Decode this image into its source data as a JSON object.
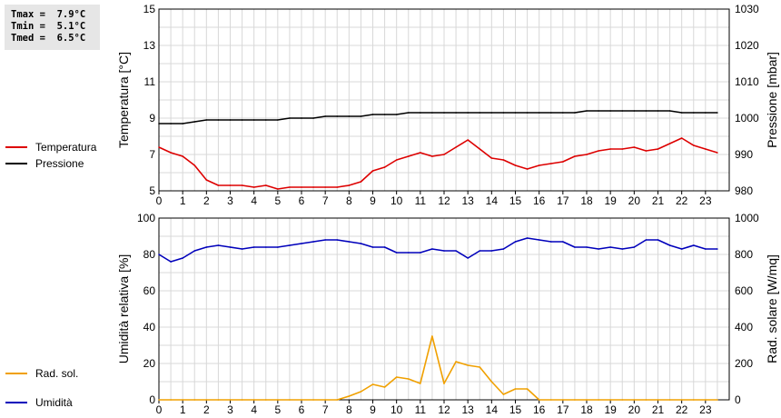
{
  "stats": {
    "lines": [
      "Tmax =  7.9°C",
      "Tmin =  5.1°C",
      "Tmed =  6.5°C"
    ]
  },
  "legend_top": [
    {
      "label": "Temperatura",
      "color": "#dd0000"
    },
    {
      "label": "Pressione",
      "color": "#000000"
    }
  ],
  "legend_bottom": [
    {
      "label": "Umidità",
      "color": "#0000bb"
    },
    {
      "label": "Rad. sol.",
      "color": "#f0a000"
    }
  ],
  "chart_data": [
    {
      "type": "line",
      "title": "",
      "xlabel": "",
      "x_ticks": [
        "0",
        "1",
        "2",
        "3",
        "4",
        "5",
        "6",
        "7",
        "8",
        "9",
        "10",
        "11",
        "12",
        "13",
        "14",
        "15",
        "16",
        "17",
        "18",
        "19",
        "20",
        "21",
        "22",
        "23"
      ],
      "xlim": [
        0,
        24
      ],
      "grid": true,
      "y_left": {
        "label": "Temperatura [°C]",
        "ylim": [
          5,
          15
        ],
        "ticks": [
          "5",
          "7",
          "9",
          "11",
          "13",
          "15"
        ]
      },
      "y_right": {
        "label": "Pressione [mbar]",
        "ylim": [
          980,
          1030
        ],
        "ticks": [
          "980",
          "990",
          "1000",
          "1010",
          "1020",
          "1030"
        ]
      },
      "series": [
        {
          "name": "Temperatura",
          "axis": "left",
          "color": "#dd0000",
          "x": [
            0,
            0.5,
            1,
            1.5,
            2,
            2.5,
            3,
            3.5,
            4,
            4.5,
            5,
            5.5,
            6,
            6.5,
            7,
            7.5,
            8,
            8.5,
            9,
            9.5,
            10,
            10.5,
            11,
            11.5,
            12,
            12.5,
            13,
            13.5,
            14,
            14.5,
            15,
            15.5,
            16,
            16.5,
            17,
            17.5,
            18,
            18.5,
            19,
            19.5,
            20,
            20.5,
            21,
            21.5,
            22,
            22.5,
            23,
            23.5
          ],
          "y": [
            7.4,
            7.1,
            6.9,
            6.4,
            5.6,
            5.3,
            5.3,
            5.3,
            5.2,
            5.3,
            5.1,
            5.2,
            5.2,
            5.2,
            5.2,
            5.2,
            5.3,
            5.5,
            6.1,
            6.3,
            6.7,
            6.9,
            7.1,
            6.9,
            7.0,
            7.4,
            7.8,
            7.3,
            6.8,
            6.7,
            6.4,
            6.2,
            6.4,
            6.5,
            6.6,
            6.9,
            7.0,
            7.2,
            7.3,
            7.3,
            7.4,
            7.2,
            7.3,
            7.6,
            7.9,
            7.5,
            7.3,
            7.1
          ]
        },
        {
          "name": "Pressione",
          "axis": "right",
          "color": "#000000",
          "x": [
            0,
            0.5,
            1,
            1.5,
            2,
            2.5,
            3,
            3.5,
            4,
            4.5,
            5,
            5.5,
            6,
            6.5,
            7,
            7.5,
            8,
            8.5,
            9,
            9.5,
            10,
            10.5,
            11,
            11.5,
            12,
            12.5,
            13,
            13.5,
            14,
            14.5,
            15,
            15.5,
            16,
            16.5,
            17,
            17.5,
            18,
            18.5,
            19,
            19.5,
            20,
            20.5,
            21,
            21.5,
            22,
            22.5,
            23,
            23.5
          ],
          "y": [
            998.5,
            998.5,
            998.5,
            999,
            999.5,
            999.5,
            999.5,
            999.5,
            999.5,
            999.5,
            999.5,
            1000,
            1000,
            1000,
            1000.5,
            1000.5,
            1000.5,
            1000.5,
            1001,
            1001,
            1001,
            1001.5,
            1001.5,
            1001.5,
            1001.5,
            1001.5,
            1001.5,
            1001.5,
            1001.5,
            1001.5,
            1001.5,
            1001.5,
            1001.5,
            1001.5,
            1001.5,
            1001.5,
            1002,
            1002,
            1002,
            1002,
            1002,
            1002,
            1002,
            1002,
            1001.5,
            1001.5,
            1001.5,
            1001.5
          ]
        }
      ]
    },
    {
      "type": "line",
      "title": "",
      "xlabel": "",
      "x_ticks": [
        "0",
        "1",
        "2",
        "3",
        "4",
        "5",
        "6",
        "7",
        "8",
        "9",
        "10",
        "11",
        "12",
        "13",
        "14",
        "15",
        "16",
        "17",
        "18",
        "19",
        "20",
        "21",
        "22",
        "23"
      ],
      "xlim": [
        0,
        24
      ],
      "grid": true,
      "y_left": {
        "label": "Umidità relativa [%]",
        "ylim": [
          0,
          100
        ],
        "ticks": [
          "0",
          "20",
          "40",
          "60",
          "80",
          "100"
        ]
      },
      "y_right": {
        "label": "Rad. solare [W/mq]",
        "ylim": [
          0,
          1000
        ],
        "ticks": [
          "0",
          "200",
          "400",
          "600",
          "800",
          "1000"
        ]
      },
      "series": [
        {
          "name": "Umidità",
          "axis": "left",
          "color": "#0000bb",
          "x": [
            0,
            0.5,
            1,
            1.5,
            2,
            2.5,
            3,
            3.5,
            4,
            4.5,
            5,
            5.5,
            6,
            6.5,
            7,
            7.5,
            8,
            8.5,
            9,
            9.5,
            10,
            10.5,
            11,
            11.5,
            12,
            12.5,
            13,
            13.5,
            14,
            14.5,
            15,
            15.5,
            16,
            16.5,
            17,
            17.5,
            18,
            18.5,
            19,
            19.5,
            20,
            20.5,
            21,
            21.5,
            22,
            22.5,
            23,
            23.5
          ],
          "y": [
            80,
            76,
            78,
            82,
            84,
            85,
            84,
            83,
            84,
            84,
            84,
            85,
            86,
            87,
            88,
            88,
            87,
            86,
            84,
            84,
            81,
            81,
            81,
            83,
            82,
            82,
            78,
            82,
            82,
            83,
            87,
            89,
            88,
            87,
            87,
            84,
            84,
            83,
            84,
            83,
            84,
            88,
            88,
            85,
            83,
            85,
            83,
            83
          ]
        },
        {
          "name": "Rad. sol.",
          "axis": "right",
          "color": "#f0a000",
          "x": [
            0,
            0.5,
            1,
            1.5,
            2,
            2.5,
            3,
            3.5,
            4,
            4.5,
            5,
            5.5,
            6,
            6.5,
            7,
            7.5,
            8,
            8.5,
            9,
            9.5,
            10,
            10.5,
            11,
            11.5,
            12,
            12.5,
            13,
            13.5,
            14,
            14.5,
            15,
            15.5,
            16,
            16.5,
            17,
            17.5,
            18,
            18.5,
            19,
            19.5,
            20,
            20.5,
            21,
            21.5,
            22,
            22.5,
            23,
            23.5
          ],
          "y": [
            0,
            0,
            0,
            0,
            0,
            0,
            0,
            0,
            0,
            0,
            0,
            0,
            0,
            0,
            0,
            0,
            20,
            45,
            85,
            70,
            125,
            115,
            90,
            350,
            90,
            210,
            190,
            180,
            100,
            30,
            60,
            60,
            0,
            0,
            0,
            0,
            0,
            0,
            0,
            0,
            0,
            0,
            0,
            0,
            0,
            0,
            0,
            0
          ]
        }
      ]
    }
  ]
}
